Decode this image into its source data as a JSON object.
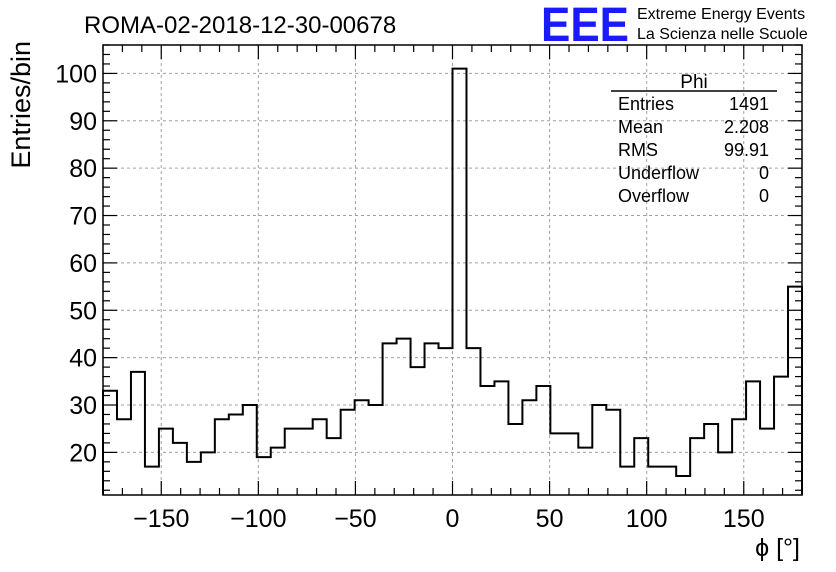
{
  "chart_data": {
    "type": "bar",
    "style": "histogram-step",
    "title": "ROMA-02-2018-12-30-00678",
    "xlabel": "ϕ [°]",
    "ylabel": "Entries/bin",
    "xlim": [
      -180,
      180
    ],
    "ylim": [
      11,
      106
    ],
    "bin_width": 7.2,
    "x_ticks": [
      -150,
      -100,
      -50,
      0,
      50,
      100,
      150
    ],
    "x_tick_labels": [
      "−150",
      "−100",
      "−50",
      "0",
      "50",
      "100",
      "150"
    ],
    "y_ticks": [
      20,
      30,
      40,
      50,
      60,
      70,
      80,
      90,
      100
    ],
    "y_tick_labels": [
      "20",
      "30",
      "40",
      "50",
      "60",
      "70",
      "80",
      "90",
      "100"
    ],
    "values": [
      33,
      27,
      37,
      17,
      25,
      22,
      18,
      20,
      27,
      28,
      30,
      19,
      21,
      25,
      25,
      27,
      23,
      29,
      31,
      30,
      43,
      44,
      38,
      43,
      42,
      101,
      42,
      34,
      35,
      26,
      31,
      34,
      24,
      24,
      21,
      30,
      29,
      17,
      23,
      17,
      17,
      15,
      23,
      26,
      20,
      27,
      35,
      25,
      36,
      55
    ],
    "grid": true,
    "stats": {
      "title": "Phi",
      "rows": [
        {
          "label": "Entries",
          "value": "1491"
        },
        {
          "label": "Mean",
          "value": "2.208"
        },
        {
          "label": "RMS",
          "value": "99.91"
        },
        {
          "label": "Underflow",
          "value": "0"
        },
        {
          "label": "Overflow",
          "value": "0"
        }
      ]
    }
  },
  "logo": {
    "mark": "EEE",
    "line1": "Extreme Energy Events",
    "line2": "La Scienza nelle Scuole",
    "color": "#1a1aff"
  },
  "colors": {
    "grid": "#a0a0a0",
    "line": "#000000"
  }
}
